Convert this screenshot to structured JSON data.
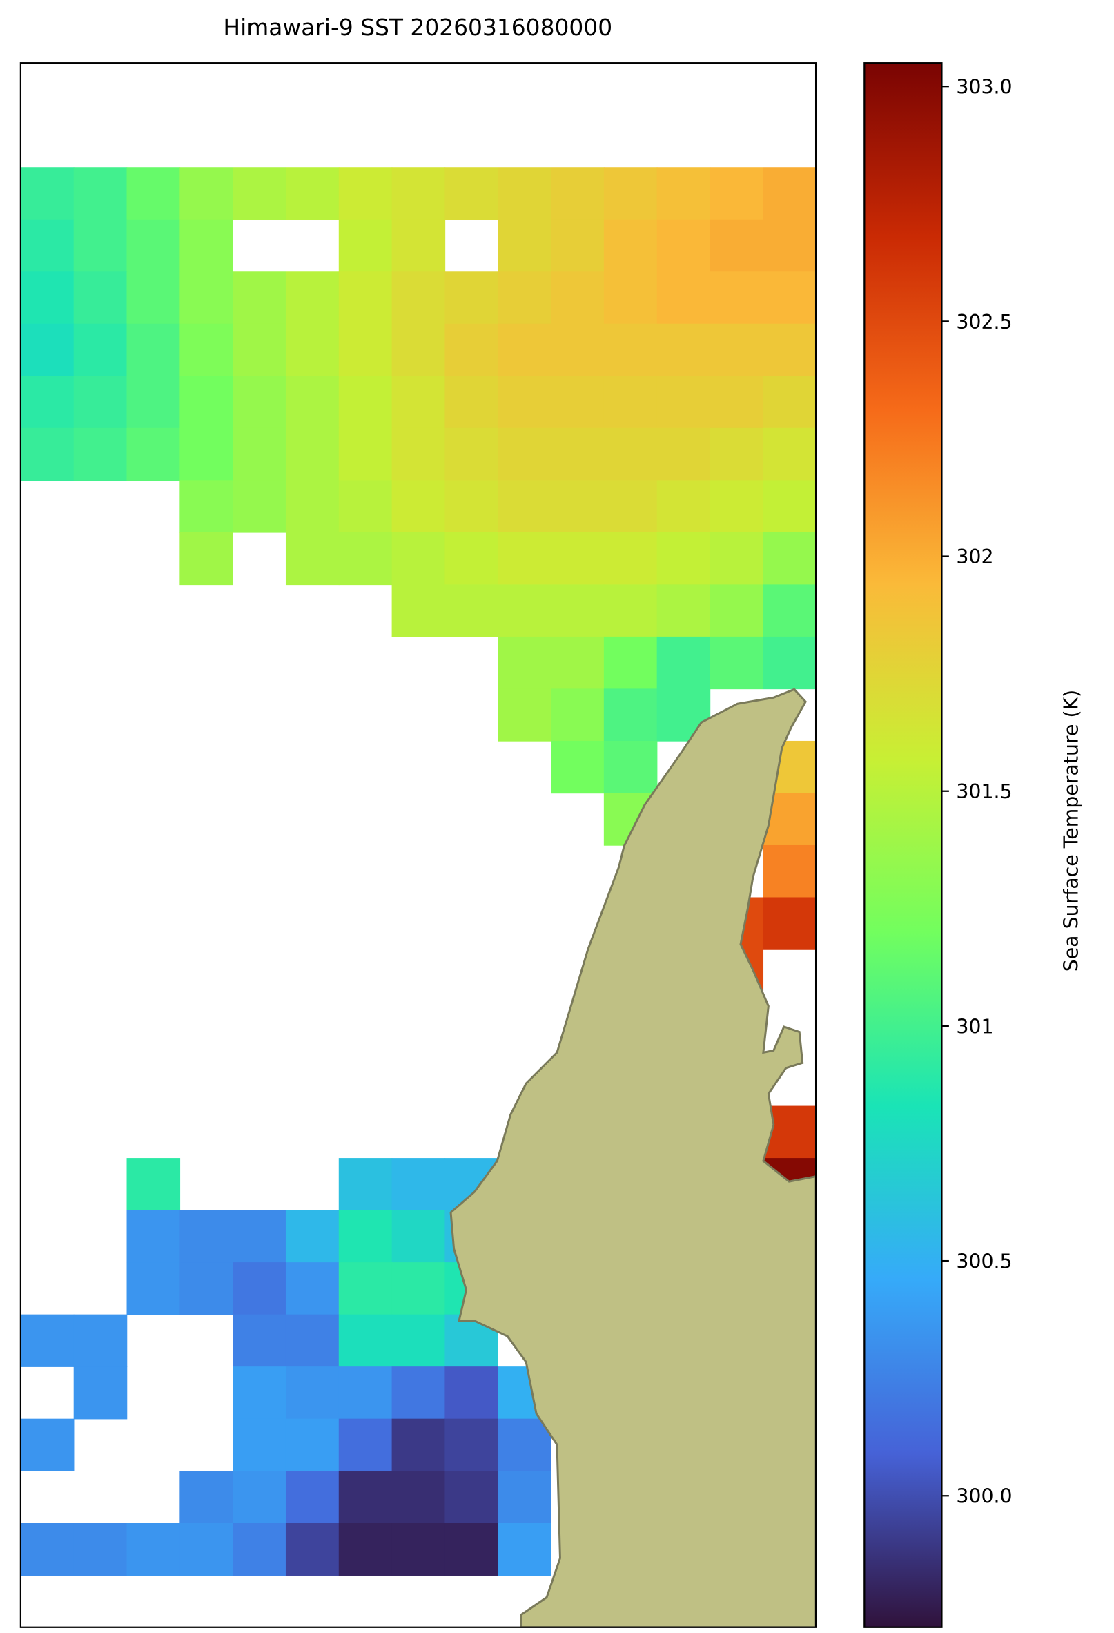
{
  "chart_data": {
    "type": "heatmap",
    "title": "Himawari-9 SST 20260316080000",
    "colorbar_label": "Sea Surface Temperature (K)",
    "colorbar_lim": [
      299.72,
      303.05
    ],
    "colorbar_ticks": [
      {
        "value": 300,
        "label": "300.0"
      },
      300.5,
      301,
      302.5,
      302,
      301.5,
      {
        "value": 303,
        "label": "303.0"
      }
    ],
    "colormap": [
      "#30123b",
      "#4662d7",
      "#36aaf9",
      "#1ae4b6",
      "#72fe5e",
      "#c8ef34",
      "#faba39",
      "#f66b19",
      "#ca2a04",
      "#7a0403"
    ],
    "land_color": "#bfc084",
    "values": [
      [
        null,
        null,
        null,
        null,
        null,
        null,
        null,
        null,
        null,
        null,
        null,
        null,
        null,
        null,
        null
      ],
      [
        null,
        null,
        null,
        null,
        null,
        null,
        null,
        null,
        null,
        null,
        null,
        null,
        null,
        null,
        null
      ],
      [
        300.95,
        301.0,
        301.15,
        301.35,
        301.45,
        301.5,
        301.6,
        301.65,
        301.7,
        301.75,
        301.8,
        301.85,
        301.9,
        301.95,
        302.0
      ],
      [
        300.9,
        301.0,
        301.1,
        301.3,
        null,
        null,
        301.55,
        301.65,
        null,
        301.75,
        301.8,
        301.9,
        301.95,
        302.0,
        302.0
      ],
      [
        300.85,
        300.95,
        301.1,
        301.3,
        301.4,
        301.5,
        301.6,
        301.7,
        301.75,
        301.8,
        301.85,
        301.9,
        301.95,
        301.95,
        301.95
      ],
      [
        300.8,
        300.9,
        301.05,
        301.25,
        301.4,
        301.5,
        301.6,
        301.7,
        301.8,
        301.85,
        301.85,
        301.85,
        301.85,
        301.85,
        301.85
      ],
      [
        300.9,
        300.95,
        301.05,
        301.2,
        301.35,
        301.45,
        301.55,
        301.65,
        301.75,
        301.8,
        301.8,
        301.8,
        301.8,
        301.8,
        301.75
      ],
      [
        300.95,
        301.0,
        301.1,
        301.2,
        301.35,
        301.45,
        301.55,
        301.65,
        301.7,
        301.75,
        301.75,
        301.75,
        301.75,
        301.7,
        301.65
      ],
      [
        null,
        null,
        null,
        301.3,
        301.35,
        301.45,
        301.5,
        301.6,
        301.65,
        301.7,
        301.7,
        301.7,
        301.65,
        301.6,
        301.55
      ],
      [
        null,
        null,
        null,
        301.4,
        null,
        301.45,
        301.45,
        301.5,
        301.55,
        301.6,
        301.6,
        301.6,
        301.55,
        301.5,
        301.35
      ],
      [
        null,
        null,
        null,
        null,
        null,
        null,
        null,
        301.5,
        301.5,
        301.5,
        301.5,
        301.5,
        301.45,
        301.35,
        301.1
      ],
      [
        null,
        null,
        null,
        null,
        null,
        null,
        null,
        null,
        null,
        301.4,
        301.4,
        301.2,
        301.0,
        301.1,
        301.0
      ],
      [
        null,
        null,
        null,
        null,
        null,
        null,
        null,
        null,
        null,
        301.4,
        301.3,
        301.05,
        301.0,
        null,
        null
      ],
      [
        null,
        null,
        null,
        null,
        null,
        null,
        null,
        null,
        null,
        null,
        301.2,
        301.1,
        null,
        null,
        301.85
      ],
      [
        null,
        null,
        null,
        null,
        null,
        null,
        null,
        null,
        null,
        null,
        null,
        301.3,
        null,
        null,
        302.05
      ],
      [
        null,
        null,
        null,
        null,
        null,
        null,
        null,
        null,
        null,
        null,
        null,
        null,
        null,
        null,
        302.2
      ],
      [
        null,
        null,
        null,
        null,
        null,
        null,
        null,
        null,
        null,
        null,
        null,
        null,
        null,
        302.5,
        302.6
      ],
      [
        null,
        null,
        null,
        null,
        null,
        null,
        null,
        null,
        null,
        null,
        null,
        null,
        null,
        302.5,
        null
      ],
      [
        null,
        null,
        null,
        null,
        null,
        null,
        null,
        null,
        null,
        null,
        null,
        null,
        null,
        null,
        null
      ],
      [
        null,
        null,
        null,
        null,
        null,
        null,
        null,
        null,
        null,
        null,
        null,
        null,
        null,
        null,
        null
      ],
      [
        null,
        null,
        null,
        null,
        null,
        null,
        null,
        null,
        null,
        null,
        null,
        null,
        null,
        null,
        302.6
      ],
      [
        null,
        null,
        300.9,
        null,
        null,
        null,
        300.6,
        300.55,
        300.55,
        null,
        null,
        null,
        null,
        null,
        303.0
      ],
      [
        null,
        null,
        300.35,
        300.3,
        300.3,
        300.55,
        300.85,
        300.75,
        300.6,
        null,
        null,
        null,
        null,
        null,
        null
      ],
      [
        null,
        null,
        300.35,
        300.3,
        300.2,
        300.35,
        300.9,
        300.9,
        300.85,
        null,
        null,
        null,
        null,
        null,
        null
      ],
      [
        300.35,
        300.35,
        null,
        null,
        300.25,
        300.25,
        300.8,
        300.8,
        300.65,
        null,
        null,
        null,
        null,
        null,
        null
      ],
      [
        null,
        300.35,
        null,
        null,
        300.4,
        300.35,
        300.35,
        300.2,
        300.05,
        300.5,
        null,
        null,
        null,
        null,
        null
      ],
      [
        300.35,
        null,
        null,
        null,
        300.4,
        300.4,
        300.15,
        299.9,
        299.95,
        300.25,
        null,
        null,
        null,
        null,
        null
      ],
      [
        null,
        null,
        null,
        300.3,
        300.35,
        300.15,
        299.85,
        299.85,
        299.9,
        300.3,
        null,
        null,
        null,
        null,
        null
      ],
      [
        300.3,
        300.3,
        300.35,
        300.35,
        300.25,
        299.95,
        299.8,
        299.8,
        299.8,
        300.4,
        null,
        null,
        null,
        null,
        null
      ],
      [
        null,
        null,
        null,
        null,
        null,
        null,
        null,
        null,
        null,
        null,
        null,
        null,
        null,
        null,
        null
      ]
    ]
  }
}
